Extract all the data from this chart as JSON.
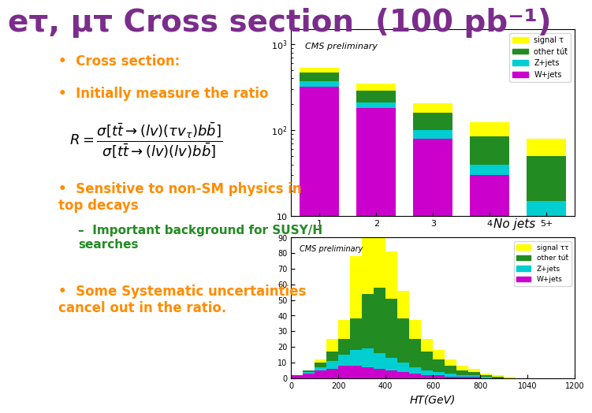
{
  "title": "eτ, μτ Cross section  (100 pb⁻¹)",
  "title_color": "#7B2D8B",
  "title_fontsize": 28,
  "background_color": "#ffffff",
  "bullet_color": "#FF8C00",
  "bullet_items": [
    "Cross section:",
    "Initially measure the ratio"
  ],
  "bullet3": "Sensitive to non-SM physics in\ntop decays",
  "sub_bullet": "Important background for SUSY/H\nsearches",
  "bullet4": "Some Systematic uncertainties\ncancel out in the ratio.",
  "no_jets_label": "No jets",
  "ht_label": "HT(GeV)",
  "plot1_title": "CMS preliminary",
  "plot2_title": "CMS preliminary",
  "plot1_legend": [
    "signal τ",
    "other tút̄",
    "Z+jets",
    "W+jets"
  ],
  "plot2_legend": [
    "signal ττ",
    "other tút̄",
    "Z+jets",
    "W+jets"
  ],
  "legend_colors": [
    "#FFFF00",
    "#228B22",
    "#00CED1",
    "#CC00CC"
  ],
  "plot1_xlabel": "",
  "plot1_xticks": [
    "1",
    "2",
    "3",
    "4",
    "5+"
  ],
  "plot1_yticks": [
    "10",
    "10²"
  ],
  "formula_color": "#000000",
  "sub_bullet_color": "#228B22"
}
